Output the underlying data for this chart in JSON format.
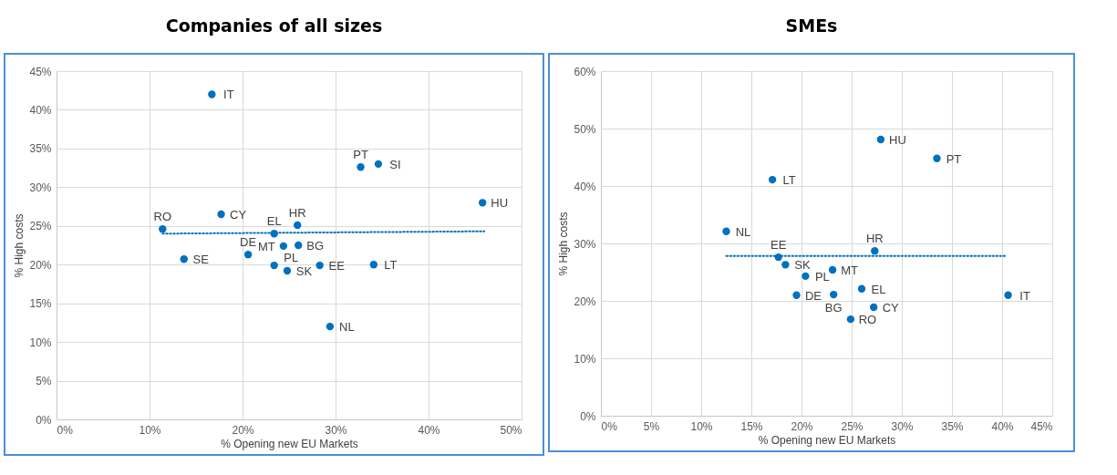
{
  "chart_data": [
    {
      "type": "scatter",
      "title": "Companies of all sizes",
      "xlabel": "% Opening new EU Markets",
      "ylabel": "% High costs",
      "xlim": [
        0,
        50
      ],
      "xticks": [
        {
          "value": 0,
          "label": "0%"
        },
        {
          "value": 10,
          "label": "10%"
        },
        {
          "value": 20,
          "label": "20%"
        },
        {
          "value": 30,
          "label": "30%"
        },
        {
          "value": 40,
          "label": "40%"
        },
        {
          "value": 50,
          "label": "50%"
        }
      ],
      "ylim": [
        0,
        45
      ],
      "yticks": [
        {
          "value": 0,
          "label": "0%"
        },
        {
          "value": 5,
          "label": "5%"
        },
        {
          "value": 10,
          "label": "10%"
        },
        {
          "value": 15,
          "label": "15%"
        },
        {
          "value": 20,
          "label": "20%"
        },
        {
          "value": 25,
          "label": "25%"
        },
        {
          "value": 30,
          "label": "30%"
        },
        {
          "value": 35,
          "label": "35%"
        },
        {
          "value": 40,
          "label": "40%"
        },
        {
          "value": 45,
          "label": "45%"
        }
      ],
      "grid": true,
      "legend": false,
      "series": [
        {
          "type": "scatter",
          "marker": "circle",
          "color": "#0070c0",
          "x": [
            16.7,
            17.7,
            11.4,
            13.7,
            20.6,
            23.4,
            24.4,
            23.4,
            24.8,
            25.9,
            26.0,
            28.3,
            34.1,
            29.4,
            32.7,
            34.6,
            45.8
          ],
          "values": [
            42.0,
            26.5,
            24.6,
            20.7,
            21.3,
            24.0,
            22.4,
            19.9,
            19.2,
            25.1,
            22.5,
            19.9,
            20.0,
            12.0,
            32.6,
            33.0,
            28.0
          ]
        },
        {
          "type": "line",
          "color": "#0070c0",
          "line_style": "dotted",
          "x": [
            11.4,
            46.0
          ],
          "values": [
            24.0,
            24.3
          ]
        }
      ],
      "annotations": [
        {
          "text": "IT",
          "x": 16.7,
          "y": 42.0
        },
        {
          "text": "CY",
          "x": 17.7,
          "y": 26.5
        },
        {
          "text": "RO",
          "x": 11.4,
          "y": 24.6
        },
        {
          "text": "SE",
          "x": 13.7,
          "y": 20.7
        },
        {
          "text": "DE",
          "x": 20.6,
          "y": 21.3
        },
        {
          "text": "EL",
          "x": 23.4,
          "y": 24.0
        },
        {
          "text": "MT",
          "x": 24.4,
          "y": 22.4
        },
        {
          "text": "PL",
          "x": 23.4,
          "y": 19.9
        },
        {
          "text": "SK",
          "x": 24.8,
          "y": 19.2
        },
        {
          "text": "HR",
          "x": 25.9,
          "y": 25.1
        },
        {
          "text": "BG",
          "x": 26.0,
          "y": 22.5
        },
        {
          "text": "EE",
          "x": 28.3,
          "y": 19.9
        },
        {
          "text": "LT",
          "x": 34.1,
          "y": 20.0
        },
        {
          "text": "NL",
          "x": 29.4,
          "y": 12.0
        },
        {
          "text": "PT",
          "x": 32.7,
          "y": 32.6
        },
        {
          "text": "SI",
          "x": 34.6,
          "y": 33.0
        },
        {
          "text": "HU",
          "x": 45.8,
          "y": 28.0
        }
      ]
    },
    {
      "type": "scatter",
      "title": "SMEs",
      "xlabel": "% Opening new EU Markets",
      "ylabel": "% High costs",
      "xlim": [
        0,
        45
      ],
      "xticks": [
        {
          "value": 0,
          "label": "0%"
        },
        {
          "value": 5,
          "label": "5%"
        },
        {
          "value": 10,
          "label": "10%"
        },
        {
          "value": 15,
          "label": "15%"
        },
        {
          "value": 20,
          "label": "20%"
        },
        {
          "value": 25,
          "label": "25%"
        },
        {
          "value": 30,
          "label": "30%"
        },
        {
          "value": 35,
          "label": "35%"
        },
        {
          "value": 40,
          "label": "40%"
        },
        {
          "value": 45,
          "label": "45%"
        }
      ],
      "ylim": [
        0,
        60
      ],
      "yticks": [
        {
          "value": 0,
          "label": "0%"
        },
        {
          "value": 10,
          "label": "10%"
        },
        {
          "value": 20,
          "label": "20%"
        },
        {
          "value": 30,
          "label": "30%"
        },
        {
          "value": 40,
          "label": "40%"
        },
        {
          "value": 50,
          "label": "50%"
        },
        {
          "value": 60,
          "label": "60%"
        }
      ],
      "grid": true,
      "legend": false,
      "series": [
        {
          "type": "scatter",
          "marker": "circle",
          "color": "#0070c0",
          "x": [
            27.9,
            33.5,
            17.1,
            12.5,
            27.3,
            17.7,
            18.4,
            20.4,
            23.1,
            26.0,
            19.5,
            23.2,
            27.2,
            24.9,
            40.6
          ],
          "values": [
            48.1,
            44.8,
            41.1,
            32.1,
            28.7,
            27.6,
            26.3,
            24.3,
            25.4,
            22.1,
            21.0,
            21.1,
            18.9,
            16.8,
            21.0
          ]
        },
        {
          "type": "line",
          "color": "#0070c0",
          "line_style": "dotted",
          "x": [
            12.5,
            40.5
          ],
          "values": [
            27.8,
            27.8
          ]
        }
      ],
      "annotations": [
        {
          "text": "HU",
          "x": 27.9,
          "y": 48.1
        },
        {
          "text": "PT",
          "x": 33.5,
          "y": 44.8
        },
        {
          "text": "LT",
          "x": 17.1,
          "y": 41.1
        },
        {
          "text": "NL",
          "x": 12.5,
          "y": 32.1
        },
        {
          "text": "HR",
          "x": 27.3,
          "y": 28.7
        },
        {
          "text": "EE",
          "x": 17.7,
          "y": 27.6
        },
        {
          "text": "SK",
          "x": 18.4,
          "y": 26.3
        },
        {
          "text": "PL",
          "x": 20.4,
          "y": 24.3
        },
        {
          "text": "MT",
          "x": 23.1,
          "y": 25.4
        },
        {
          "text": "EL",
          "x": 26.0,
          "y": 22.1
        },
        {
          "text": "DE",
          "x": 19.5,
          "y": 21.0
        },
        {
          "text": "BG",
          "x": 23.2,
          "y": 21.1
        },
        {
          "text": "CY",
          "x": 27.2,
          "y": 18.9
        },
        {
          "text": "RO",
          "x": 24.9,
          "y": 16.8
        },
        {
          "text": "IT",
          "x": 40.6,
          "y": 21.0
        }
      ]
    }
  ]
}
